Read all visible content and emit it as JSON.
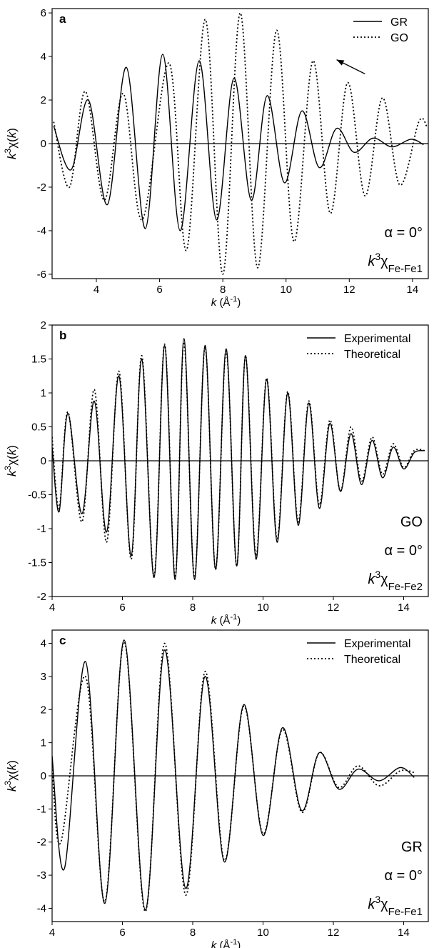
{
  "chart_data": [
    {
      "panel": "a",
      "type": "line",
      "xlabel": "k (Å-1)",
      "ylabel": "k3χ(k)",
      "xlim": [
        2.6,
        14.5
      ],
      "ylim": [
        -6.2,
        6.2
      ],
      "xticks": [
        4,
        6,
        8,
        10,
        12,
        14
      ],
      "yticks": [
        -6,
        -4,
        -2,
        0,
        2,
        4,
        6
      ],
      "legend_position": "top-right",
      "annotation_lines": [
        "α = 0°",
        "k3χFe-Fe1"
      ],
      "arrow": {
        "from": [
          12.5,
          3.2
        ],
        "to": [
          11.6,
          3.85
        ]
      },
      "series": [
        {
          "name": "GR",
          "style": "solid",
          "x": [
            2.65,
            3.2,
            3.75,
            4.35,
            4.95,
            5.55,
            6.1,
            6.65,
            7.25,
            7.8,
            8.35,
            8.9,
            9.4,
            9.95,
            10.5,
            11.05,
            11.6,
            12.15,
            12.75,
            13.35,
            13.95,
            14.35
          ],
          "y": [
            0.8,
            -1.2,
            2.0,
            -2.8,
            3.5,
            -3.9,
            4.1,
            -4.0,
            3.8,
            -3.5,
            3.0,
            -2.6,
            2.2,
            -1.8,
            1.5,
            -1.1,
            0.7,
            -0.4,
            0.25,
            -0.15,
            0.2,
            -0.05
          ]
        },
        {
          "name": "GO",
          "style": "dotted",
          "x": [
            2.65,
            3.15,
            3.65,
            4.25,
            4.85,
            5.45,
            6.3,
            6.85,
            7.45,
            8.0,
            8.55,
            9.1,
            9.7,
            10.25,
            10.85,
            11.4,
            11.95,
            12.5,
            13.05,
            13.6,
            14.2,
            14.45
          ],
          "y": [
            1.0,
            -2.0,
            2.4,
            -2.6,
            2.3,
            -3.5,
            3.7,
            -4.9,
            5.7,
            -6.0,
            6.0,
            -5.7,
            5.2,
            -4.5,
            3.8,
            -3.2,
            2.8,
            -2.4,
            2.1,
            -1.9,
            1.0,
            0.8
          ]
        }
      ]
    },
    {
      "panel": "b",
      "type": "line",
      "xlabel": "k (Å-1)",
      "ylabel": "k3χ(k)",
      "xlim": [
        4.0,
        14.7
      ],
      "ylim": [
        -2.0,
        2.0
      ],
      "xticks": [
        4,
        6,
        8,
        10,
        12,
        14
      ],
      "yticks": [
        -2,
        -1.5,
        -1,
        -0.5,
        0,
        0.5,
        1,
        1.5,
        2
      ],
      "ytick_labels": [
        "-2",
        "-1.5",
        "-1",
        "-0.5",
        "0",
        "0.5",
        "1",
        "1.5",
        "2"
      ],
      "legend_position": "top-right",
      "annotation_lines": [
        "GO",
        "α = 0°",
        "k3χFe-Fe2"
      ],
      "series": [
        {
          "name": "Experimental",
          "style": "solid",
          "x": [
            4.0,
            4.2,
            4.45,
            4.85,
            5.2,
            5.55,
            5.9,
            6.25,
            6.55,
            6.9,
            7.2,
            7.5,
            7.75,
            8.05,
            8.35,
            8.65,
            8.95,
            9.25,
            9.5,
            9.8,
            10.1,
            10.4,
            10.7,
            11.0,
            11.3,
            11.6,
            11.9,
            12.2,
            12.5,
            12.8,
            13.1,
            13.4,
            13.7,
            14.0,
            14.3,
            14.6
          ],
          "y": [
            0.2,
            -0.75,
            0.7,
            -0.78,
            0.88,
            -1.05,
            1.25,
            -1.4,
            1.5,
            -1.72,
            1.7,
            -1.75,
            1.8,
            -1.75,
            1.7,
            -1.6,
            1.65,
            -1.55,
            1.55,
            -1.45,
            1.2,
            -1.2,
            1.0,
            -0.95,
            0.85,
            -0.7,
            0.55,
            -0.45,
            0.4,
            -0.35,
            0.3,
            -0.25,
            0.2,
            -0.12,
            0.12,
            0.15
          ]
        },
        {
          "name": "Theoretical",
          "style": "dotted",
          "x": [
            4.0,
            4.2,
            4.45,
            4.85,
            5.2,
            5.55,
            5.9,
            6.25,
            6.55,
            6.9,
            7.2,
            7.5,
            7.75,
            8.05,
            8.35,
            8.65,
            8.95,
            9.25,
            9.5,
            9.8,
            10.1,
            10.4,
            10.7,
            11.0,
            11.3,
            11.6,
            11.9,
            12.2,
            12.5,
            12.8,
            13.1,
            13.4,
            13.7,
            14.0,
            14.3,
            14.6
          ],
          "y": [
            0.35,
            -0.7,
            0.72,
            -0.9,
            1.05,
            -1.2,
            1.32,
            -1.45,
            1.55,
            -1.7,
            1.72,
            -1.72,
            1.75,
            -1.72,
            1.68,
            -1.6,
            1.62,
            -1.55,
            1.55,
            -1.4,
            1.22,
            -1.15,
            1.02,
            -0.9,
            0.88,
            -0.65,
            0.6,
            -0.45,
            0.5,
            -0.3,
            0.35,
            -0.2,
            0.25,
            -0.1,
            0.15,
            0.15
          ]
        }
      ]
    },
    {
      "panel": "c",
      "type": "line",
      "xlabel": "k (Å-1)",
      "ylabel": "k3χ(k)",
      "xlim": [
        4.0,
        14.7
      ],
      "ylim": [
        -4.4,
        4.4
      ],
      "xticks": [
        4,
        6,
        8,
        10,
        12,
        14
      ],
      "yticks": [
        -4,
        -3,
        -2,
        -1,
        0,
        1,
        2,
        3,
        4
      ],
      "legend_position": "top-right",
      "annotation_lines": [
        "GR",
        "α = 0°",
        "k3χFe-Fe1"
      ],
      "series": [
        {
          "name": "Experimental",
          "style": "solid",
          "x": [
            4.0,
            4.35,
            4.95,
            5.5,
            6.05,
            6.65,
            7.2,
            7.8,
            8.35,
            8.9,
            9.45,
            10.0,
            10.55,
            11.1,
            11.6,
            12.15,
            12.7,
            13.3,
            13.9,
            14.3
          ],
          "y": [
            0.6,
            -2.8,
            3.45,
            -3.85,
            4.1,
            -4.05,
            3.8,
            -3.4,
            3.0,
            -2.6,
            2.15,
            -1.8,
            1.45,
            -1.05,
            0.7,
            -0.4,
            0.2,
            -0.15,
            0.25,
            -0.05
          ]
        },
        {
          "name": "Theoretical",
          "style": "dotted",
          "x": [
            4.0,
            4.25,
            4.95,
            5.5,
            6.05,
            6.65,
            7.2,
            7.8,
            8.35,
            8.9,
            9.45,
            10.0,
            10.55,
            11.1,
            11.6,
            12.15,
            12.7,
            13.3,
            13.9,
            14.3
          ],
          "y": [
            0.3,
            -2.0,
            3.0,
            -3.8,
            4.05,
            -4.1,
            4.0,
            -3.6,
            3.15,
            -2.55,
            2.1,
            -1.75,
            1.4,
            -1.1,
            0.7,
            -0.35,
            0.3,
            -0.3,
            0.15,
            0.1
          ]
        }
      ]
    }
  ]
}
